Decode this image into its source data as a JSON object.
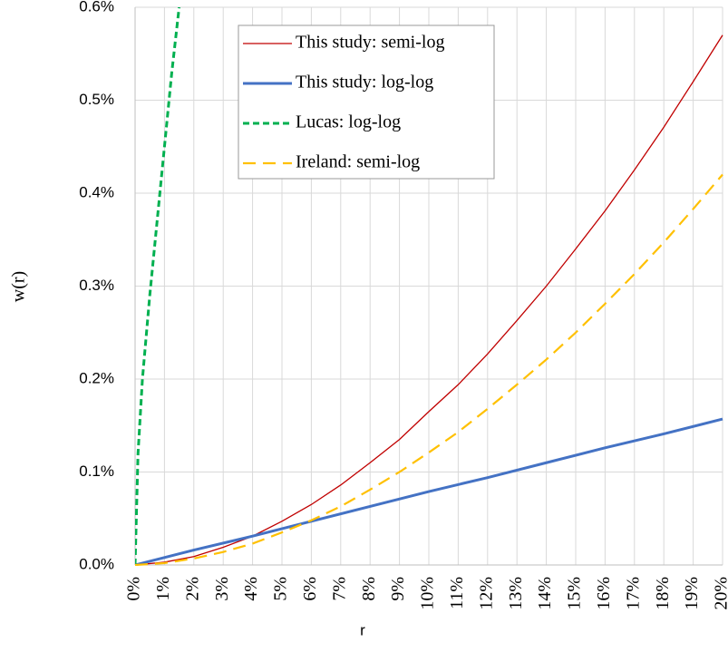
{
  "chart_data": {
    "type": "line",
    "x_label": "r",
    "y_label": "w(r)",
    "xlim": [
      0,
      20
    ],
    "ylim": [
      0,
      0.6
    ],
    "xticks": [
      {
        "value": 0,
        "label": "0%"
      },
      {
        "value": 1,
        "label": "1%"
      },
      {
        "value": 2,
        "label": "2%"
      },
      {
        "value": 3,
        "label": "3%"
      },
      {
        "value": 4,
        "label": "4%"
      },
      {
        "value": 5,
        "label": "5%"
      },
      {
        "value": 6,
        "label": "6%"
      },
      {
        "value": 7,
        "label": "7%"
      },
      {
        "value": 8,
        "label": "8%"
      },
      {
        "value": 9,
        "label": "9%"
      },
      {
        "value": 10,
        "label": "10%"
      },
      {
        "value": 11,
        "label": "11%"
      },
      {
        "value": 12,
        "label": "12%"
      },
      {
        "value": 13,
        "label": "13%"
      },
      {
        "value": 14,
        "label": "14%"
      },
      {
        "value": 15,
        "label": "15%"
      },
      {
        "value": 16,
        "label": "16%"
      },
      {
        "value": 17,
        "label": "17%"
      },
      {
        "value": 18,
        "label": "18%"
      },
      {
        "value": 19,
        "label": "19%"
      },
      {
        "value": 20,
        "label": "20%"
      }
    ],
    "yticks": [
      {
        "value": 0,
        "label": "0.0%"
      },
      {
        "value": 0.1,
        "label": "0.1%"
      },
      {
        "value": 0.2,
        "label": "0.2%"
      },
      {
        "value": 0.3,
        "label": "0.3%"
      },
      {
        "value": 0.4,
        "label": "0.4%"
      },
      {
        "value": 0.5,
        "label": "0.5%"
      },
      {
        "value": 0.6,
        "label": "0.6%"
      }
    ],
    "grid": true,
    "series": [
      {
        "name": "This study: semi-log",
        "color": "#c00000",
        "width": 1.3,
        "dash": "none",
        "x": [
          0,
          1,
          2,
          3,
          4,
          5,
          6,
          7,
          8,
          9,
          10,
          11,
          12,
          13,
          14,
          15,
          16,
          17,
          18,
          19,
          20
        ],
        "values": [
          0,
          0.003,
          0.009,
          0.019,
          0.031,
          0.047,
          0.065,
          0.086,
          0.11,
          0.135,
          0.165,
          0.194,
          0.227,
          0.263,
          0.3,
          0.34,
          0.381,
          0.425,
          0.471,
          0.52,
          0.57
        ]
      },
      {
        "name": "This study: log-log",
        "color": "#4472c4",
        "width": 3,
        "dash": "none",
        "x": [
          0,
          2,
          4,
          6,
          8,
          10,
          12,
          14,
          16,
          18,
          20
        ],
        "values": [
          0,
          0.016,
          0.031,
          0.047,
          0.063,
          0.079,
          0.094,
          0.11,
          0.126,
          0.141,
          0.157
        ]
      },
      {
        "name": "Lucas: log-log",
        "color": "#00b050",
        "width": 3,
        "dash": "7,4",
        "x": [
          0,
          0.1,
          0.25,
          0.5,
          0.75,
          1,
          1.25,
          1.5
        ],
        "values": [
          0,
          0.12,
          0.2,
          0.29,
          0.37,
          0.45,
          0.53,
          0.6
        ]
      },
      {
        "name": "Ireland: semi-log",
        "color": "#ffc000",
        "width": 2.2,
        "dash": "14,8",
        "x": [
          0,
          1,
          2,
          3,
          4,
          5,
          6,
          7,
          8,
          9,
          10,
          11,
          12,
          13,
          14,
          15,
          16,
          17,
          18,
          19,
          20
        ],
        "values": [
          0,
          0.002,
          0.007,
          0.014,
          0.023,
          0.035,
          0.048,
          0.063,
          0.081,
          0.1,
          0.121,
          0.143,
          0.168,
          0.194,
          0.221,
          0.25,
          0.281,
          0.313,
          0.347,
          0.383,
          0.42
        ]
      }
    ]
  }
}
